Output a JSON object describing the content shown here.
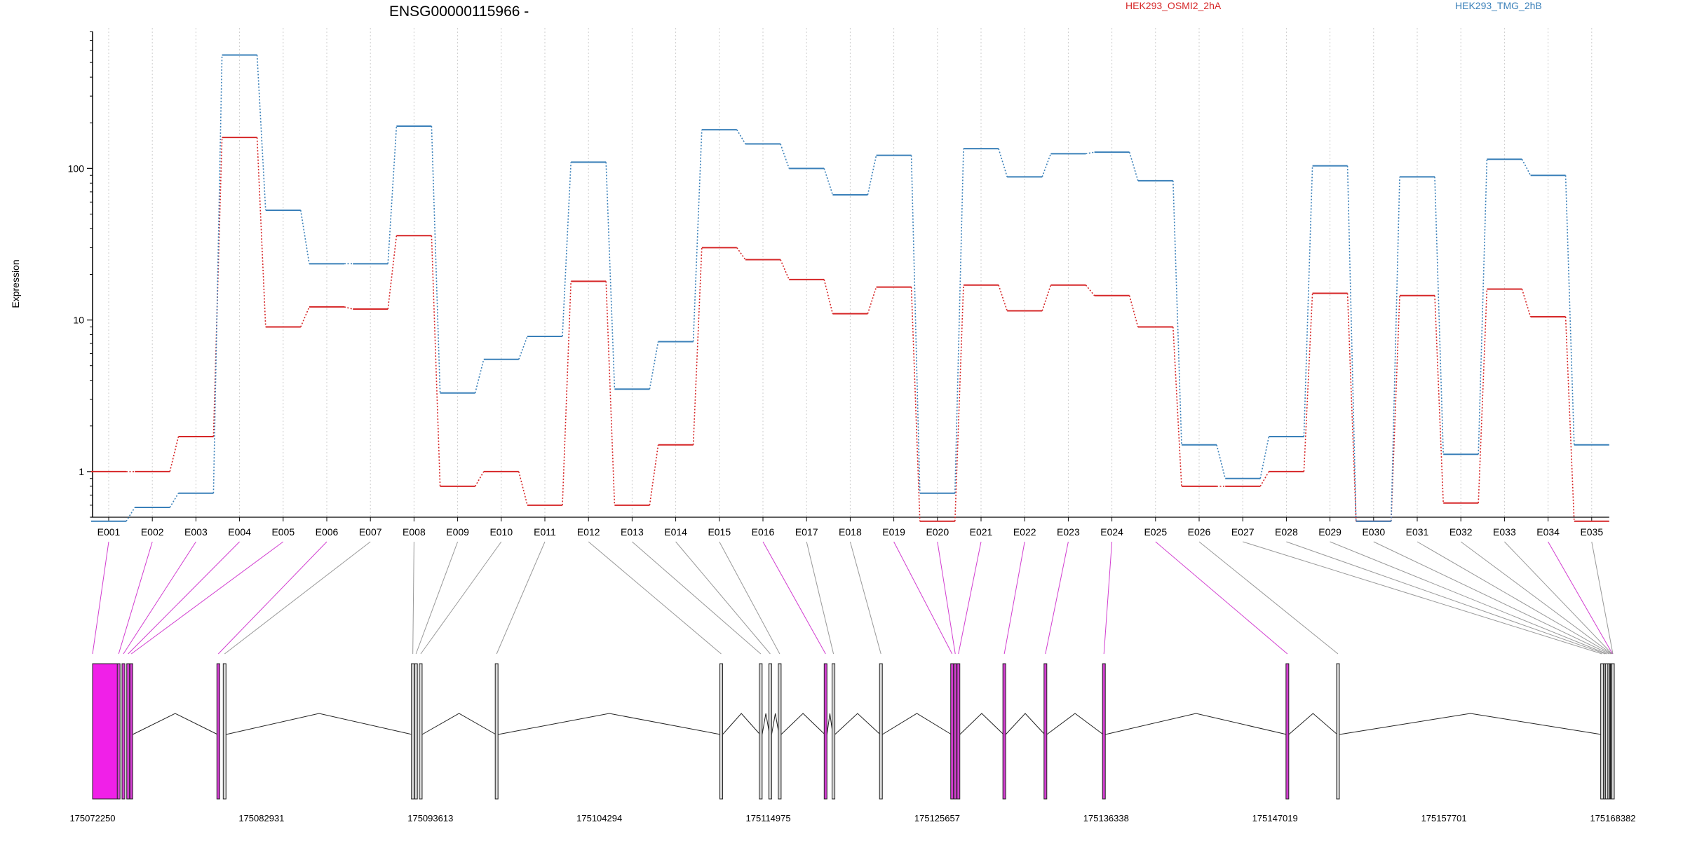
{
  "chart_data": {
    "type": "line",
    "title": "ENSG00000115966 -",
    "ylabel": "Expression",
    "xlabel": "",
    "yscale": "log",
    "ylim": [
      0.5,
      800
    ],
    "yticks": [
      1,
      10,
      100
    ],
    "ytick_labels": [
      "1",
      "10",
      "100"
    ],
    "grid": "vertical dotted lines at each exon",
    "legend_placement": "top",
    "categories": [
      "E001",
      "E002",
      "E003",
      "E004",
      "E005",
      "E006",
      "E007",
      "E008",
      "E009",
      "E010",
      "E011",
      "E012",
      "E013",
      "E014",
      "E015",
      "E016",
      "E017",
      "E018",
      "E019",
      "E020",
      "E021",
      "E022",
      "E023",
      "E024",
      "E025",
      "E026",
      "E027",
      "E028",
      "E029",
      "E030",
      "E031",
      "E032",
      "E033",
      "E034",
      "E035"
    ],
    "series": [
      {
        "name": "HEK293_OSMI2_2hA",
        "color": "#d62728",
        "values": [
          1.0,
          1.0,
          1.7,
          160,
          9.0,
          12.2,
          11.8,
          36,
          0.8,
          1.0,
          0.6,
          18,
          0.6,
          1.5,
          30,
          25,
          18.5,
          11,
          16.5,
          0.47,
          17,
          11.5,
          17,
          14.5,
          9.0,
          0.8,
          0.8,
          1.0,
          15,
          0.47,
          14.5,
          0.62,
          16,
          10.5,
          0.47
        ]
      },
      {
        "name": "HEK293_TMG_2hB",
        "color": "#3a80b9",
        "values": [
          0.47,
          0.58,
          0.72,
          560,
          53,
          23.5,
          23.5,
          190,
          3.3,
          5.5,
          7.8,
          110,
          3.5,
          7.2,
          180,
          145,
          100,
          67,
          122,
          0.72,
          135,
          88,
          125,
          128,
          83,
          1.5,
          0.9,
          1.7,
          104,
          0.47,
          88,
          1.3,
          115,
          90,
          1.5
        ]
      }
    ],
    "genomic_coordinates": [
      "175072250",
      "175082931",
      "175093613",
      "175104294",
      "175114975",
      "175125657",
      "175136338",
      "175147019",
      "175157701",
      "175168382"
    ],
    "genomic_range": [
      175072250,
      175168382
    ],
    "exon_genomic_positions": [
      175072250,
      175073900,
      175074200,
      175074500,
      175074700,
      175080200,
      175080600,
      175092500,
      175092700,
      175093000,
      175097800,
      175112000,
      175114500,
      175115100,
      175115700,
      175118600,
      175119100,
      175122100,
      175126600,
      175126800,
      175127000,
      175129900,
      175132500,
      175136200,
      175147800,
      175151000,
      175167700,
      175167900,
      175168000,
      175168150,
      175168250,
      175168300,
      175168330,
      175168360,
      175168382
    ],
    "highlighted_exons": [
      "E001",
      "E002",
      "E003",
      "E004",
      "E005",
      "E006",
      "E016",
      "E019",
      "E020",
      "E021",
      "E022",
      "E023",
      "E024",
      "E025",
      "E034"
    ],
    "colors": {
      "highlight": "#d23ed0",
      "highlight_fill": "#f020e8",
      "connector": "#999999",
      "exon_fill": "#d8d8d8",
      "line": "#000000"
    }
  }
}
